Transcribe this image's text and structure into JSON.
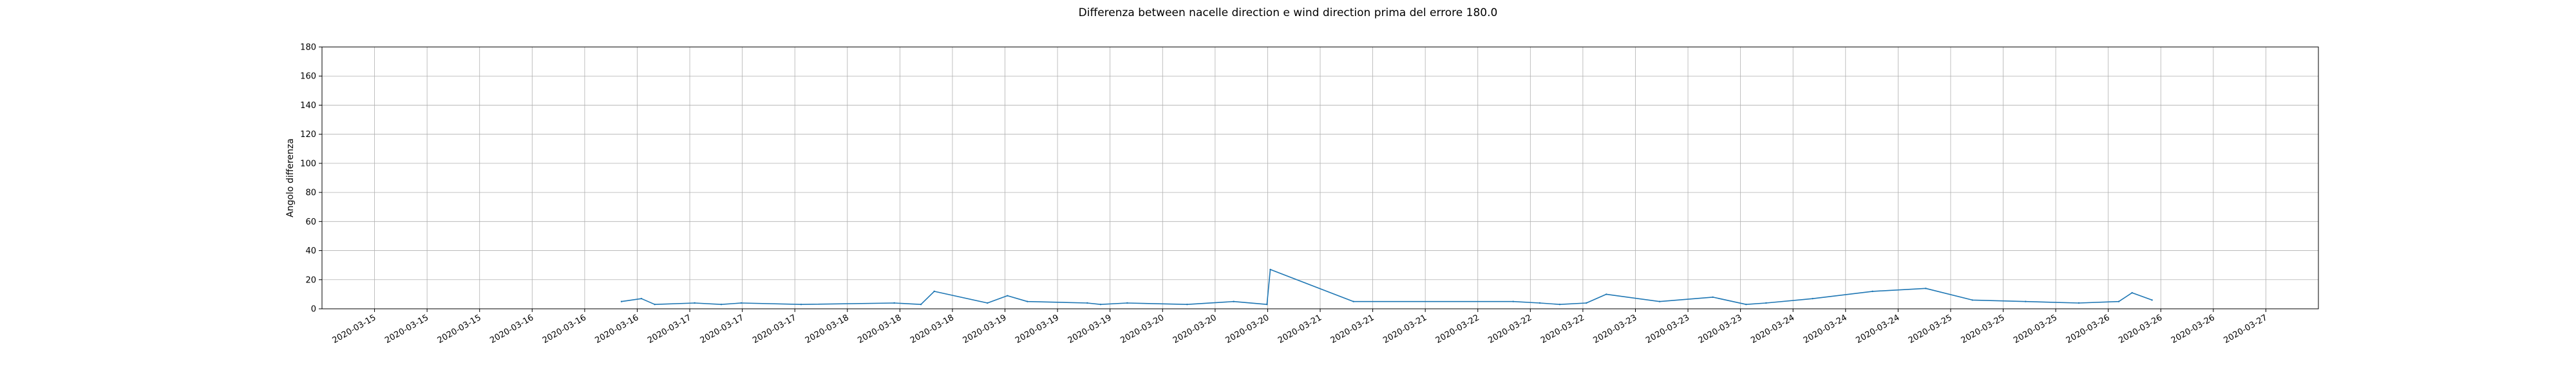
{
  "chart_data": {
    "type": "line",
    "title": "Differenza between nacelle direction e wind direction prima del errore 180.0",
    "xlabel": "",
    "ylabel": "Angolo differenza",
    "ylim": [
      0,
      180
    ],
    "yticks": [
      0,
      20,
      40,
      60,
      80,
      100,
      120,
      140,
      160,
      180
    ],
    "x_tick_labels": [
      "2020-03-15",
      "2020-03-15",
      "2020-03-15",
      "2020-03-16",
      "2020-03-16",
      "2020-03-16",
      "2020-03-17",
      "2020-03-17",
      "2020-03-17",
      "2020-03-18",
      "2020-03-18",
      "2020-03-18",
      "2020-03-19",
      "2020-03-19",
      "2020-03-19",
      "2020-03-20",
      "2020-03-20",
      "2020-03-20",
      "2020-03-21",
      "2020-03-21",
      "2020-03-21",
      "2020-03-22",
      "2020-03-22",
      "2020-03-22",
      "2020-03-23",
      "2020-03-23",
      "2020-03-23",
      "2020-03-24",
      "2020-03-24",
      "2020-03-24",
      "2020-03-25",
      "2020-03-25",
      "2020-03-25",
      "2020-03-26",
      "2020-03-26",
      "2020-03-26",
      "2020-03-27"
    ],
    "grid": true,
    "line_color": "#1f77b4",
    "series": [
      {
        "x_hours": [
          45,
          48,
          50,
          56,
          60,
          63,
          72,
          86,
          90,
          92,
          100,
          103,
          106,
          115,
          117,
          121,
          130,
          137,
          142,
          142.5,
          155,
          179,
          183,
          186,
          190,
          193,
          201,
          209,
          214,
          217,
          224,
          233,
          241,
          248,
          256,
          264,
          270,
          272,
          275
        ],
        "y": [
          5,
          7,
          3,
          4,
          3,
          4,
          3,
          4,
          3,
          12,
          4,
          9,
          5,
          4,
          3,
          4,
          3,
          5,
          3,
          27,
          5,
          5,
          4,
          3,
          4,
          10,
          5,
          8,
          3,
          4,
          7,
          12,
          14,
          6,
          5,
          4,
          5,
          11,
          6
        ]
      }
    ]
  }
}
